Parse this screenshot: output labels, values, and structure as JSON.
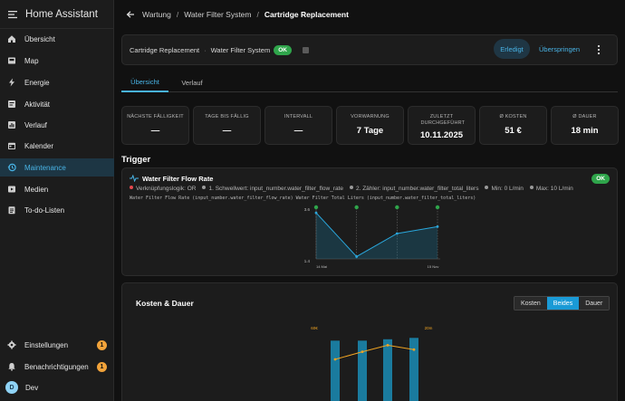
{
  "sidebar": {
    "title": "Home Assistant",
    "items": [
      {
        "label": "Übersicht",
        "icon": "home-icon"
      },
      {
        "label": "Map",
        "icon": "map-icon"
      },
      {
        "label": "Energie",
        "icon": "lightning-icon"
      },
      {
        "label": "Aktivität",
        "icon": "activity-icon"
      },
      {
        "label": "Verlauf",
        "icon": "chart-icon"
      },
      {
        "label": "Kalender",
        "icon": "calendar-icon"
      },
      {
        "label": "Maintenance",
        "icon": "history-icon"
      },
      {
        "label": "Medien",
        "icon": "media-icon"
      },
      {
        "label": "To-do-Listen",
        "icon": "clipboard-icon"
      }
    ],
    "bottom": [
      {
        "label": "Einstellungen",
        "icon": "gear-icon",
        "badge": "1"
      },
      {
        "label": "Benachrichtigungen",
        "icon": "bell-icon",
        "badge": "1"
      }
    ],
    "user": {
      "initial": "D",
      "name": "Dev"
    }
  },
  "breadcrumb": {
    "items": [
      "Wartung",
      "Water Filter System",
      "Cartridge Replacement"
    ]
  },
  "header": {
    "task": "Cartridge Replacement",
    "separator": "·",
    "object": "Water Filter System",
    "status": "OK",
    "done_label": "Erledigt",
    "skip_label": "Überspringen"
  },
  "tabs": [
    "Übersicht",
    "Verlauf"
  ],
  "stats": [
    {
      "label": "NÄCHSTE FÄLLIGKEIT",
      "value": "—"
    },
    {
      "label": "TAGE BIS FÄLLIG",
      "value": "—"
    },
    {
      "label": "INTERVALL",
      "value": "—"
    },
    {
      "label": "VORWARNUNG",
      "value": "7 Tage"
    },
    {
      "label": "ZULETZT DURCHGEFÜHRT",
      "value": "10.11.2025"
    },
    {
      "label": "Ø KOSTEN",
      "value": "51 €"
    },
    {
      "label": "Ø DAUER",
      "value": "18 min"
    }
  ],
  "trigger": {
    "section_title": "Trigger",
    "name": "Water Filter Flow Rate",
    "status": "OK",
    "meta": [
      {
        "text": "Verknüpfungslogik: OR",
        "color": "#e5484d"
      },
      {
        "text": "1. Schwellwert: input_number.water_filter_flow_rate",
        "color": "#9a9a9a"
      },
      {
        "text": "2. Zähler: input_number.water_filter_total_liters",
        "color": "#9a9a9a"
      },
      {
        "text": "Min: 0 L/min",
        "color": "#9a9a9a"
      },
      {
        "text": "Max: 10 L/min",
        "color": "#9a9a9a"
      }
    ],
    "sensors_line": "Water Filter Flow Rate (input_number.water_filter_flow_rate) Water Filter Total Liters (input_number.water_filter_total_liters)"
  },
  "chart_data": [
    {
      "type": "line",
      "yticks": [
        "3.6",
        "1.4"
      ],
      "xticks": [
        "14 Mai",
        "15 Nov"
      ],
      "points": [
        3.4,
        1.5,
        2.5,
        2.8
      ],
      "ylim": [
        1.4,
        3.6
      ]
    },
    {
      "type": "bar",
      "title": "Kosten & Dauer",
      "bars": [
        50,
        50,
        51,
        52
      ],
      "line": [
        45,
        52,
        58,
        54
      ],
      "left_label": "60€",
      "right_label": "20m"
    }
  ],
  "kosten": {
    "title": "Kosten & Dauer",
    "segments": [
      "Kosten",
      "Beides",
      "Dauer"
    ]
  },
  "colors": {
    "accent": "#49b4e6",
    "ok": "#2fa54b",
    "badge": "#f2a33a",
    "bar": "#1a7b9e",
    "line": "#f0a422"
  }
}
